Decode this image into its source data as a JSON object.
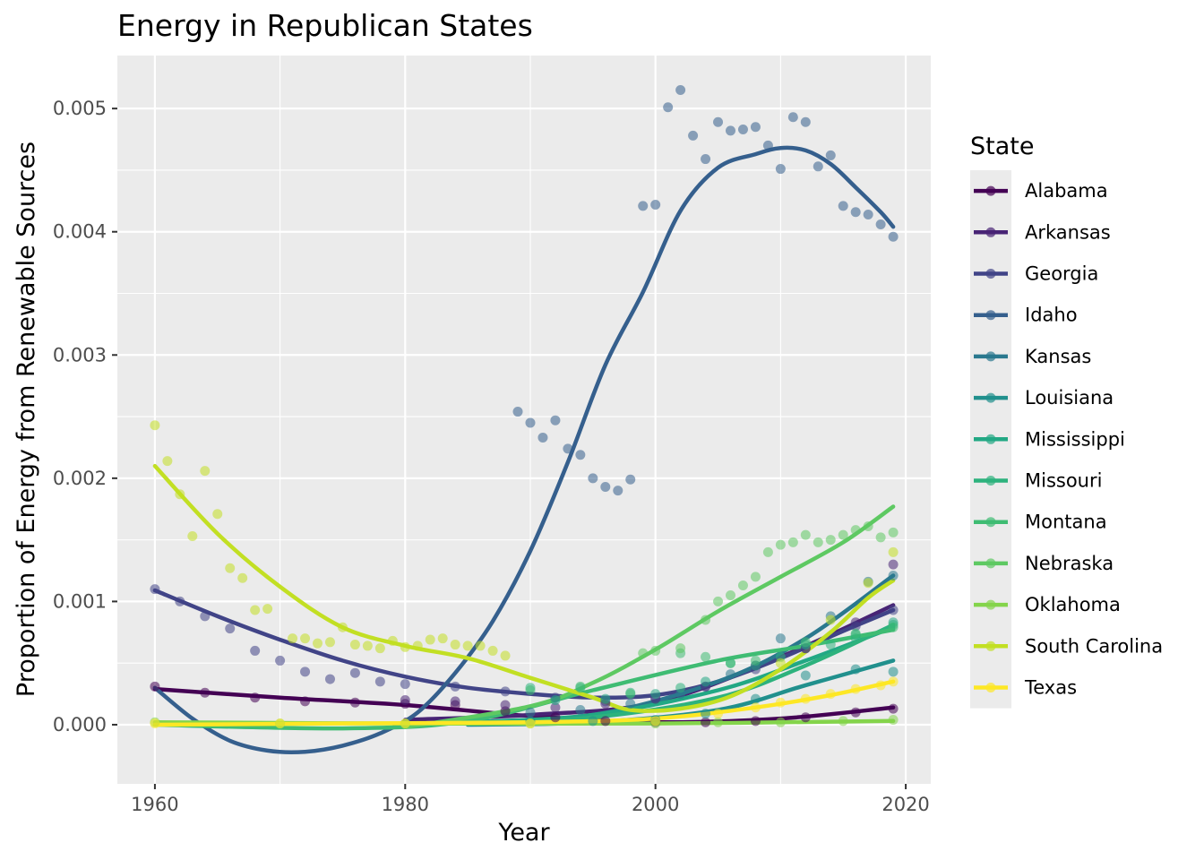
{
  "chart_data": {
    "type": "scatter",
    "title": "Energy in Republican States",
    "xlabel": "Year",
    "ylabel": "Proportion of Energy from Renewable Sources",
    "xlim": [
      1957,
      2022
    ],
    "ylim": [
      -0.00048,
      0.00543
    ],
    "xticks": [
      1960,
      1980,
      2000,
      2020
    ],
    "xtick_labels": [
      "1960",
      "1980",
      "2000",
      "2020"
    ],
    "yticks": [
      0,
      0.001,
      0.002,
      0.003,
      0.004,
      0.005
    ],
    "ytick_labels": [
      "0.000",
      "0.001",
      "0.002",
      "0.003",
      "0.004",
      "0.005"
    ],
    "grid": true,
    "legend": {
      "title": "State",
      "position": "right"
    },
    "overlay": "smoothed trend line per state",
    "series": [
      {
        "name": "Alabama",
        "color": "#440154",
        "x": [
          1960,
          1964,
          1968,
          1972,
          1976,
          1980,
          1984,
          1988,
          1992,
          1996,
          2000,
          2004,
          2008,
          2012,
          2016,
          2019
        ],
        "y": [
          0.00031,
          0.00026,
          0.00022,
          0.00019,
          0.00018,
          0.00017,
          0.00016,
          0.00011,
          6e-05,
          3e-05,
          2e-05,
          2e-05,
          3e-05,
          6e-05,
          0.0001,
          0.00013
        ],
        "trend_x": [
          1960,
          1970,
          1980,
          1990,
          2000,
          2010,
          2019
        ],
        "trend_y": [
          0.00029,
          0.00022,
          0.00016,
          7e-05,
          2e-05,
          5e-05,
          0.00014
        ]
      },
      {
        "name": "Arkansas",
        "color": "#482475",
        "x": [
          1980,
          1984,
          1988,
          1992,
          1996,
          2000,
          2004,
          2008,
          2012,
          2016,
          2019
        ],
        "y": [
          0.0002,
          0.00019,
          0.00016,
          0.00014,
          0.00017,
          0.00021,
          0.00031,
          0.00048,
          0.00062,
          0.00083,
          0.0013
        ],
        "trend_x": [
          1980,
          1990,
          2000,
          2010,
          2019
        ],
        "trend_y": [
          4e-05,
          8e-05,
          0.00018,
          0.00055,
          0.00097
        ]
      },
      {
        "name": "Georgia",
        "color": "#414487",
        "x": [
          1960,
          1962,
          1964,
          1966,
          1968,
          1970,
          1972,
          1974,
          1976,
          1978,
          1980,
          1984,
          1988,
          1992,
          1996,
          2000,
          2004,
          2008,
          2012,
          2016,
          2019
        ],
        "y": [
          0.0011,
          0.001,
          0.00088,
          0.00078,
          0.0006,
          0.00052,
          0.00043,
          0.00037,
          0.00042,
          0.00035,
          0.00033,
          0.00031,
          0.00027,
          0.00022,
          0.00019,
          0.00022,
          0.00031,
          0.00045,
          0.00062,
          0.0008,
          0.00093
        ],
        "trend_x": [
          1960,
          1965,
          1970,
          1975,
          1980,
          1985,
          1990,
          1995,
          2000,
          2005,
          2010,
          2015,
          2019
        ],
        "trend_y": [
          0.00109,
          0.00088,
          0.00069,
          0.00052,
          0.00039,
          0.0003,
          0.00025,
          0.00022,
          0.00024,
          0.00035,
          0.00054,
          0.00076,
          0.00093
        ]
      },
      {
        "name": "Idaho",
        "color": "#355f8d",
        "x": [
          1989,
          1990,
          1991,
          1992,
          1993,
          1994,
          1995,
          1996,
          1997,
          1998,
          1999,
          2000,
          2001,
          2002,
          2003,
          2004,
          2005,
          2006,
          2007,
          2008,
          2009,
          2010,
          2011,
          2012,
          2013,
          2014,
          2015,
          2016,
          2017,
          2018,
          2019
        ],
        "y": [
          0.00254,
          0.00245,
          0.00233,
          0.00247,
          0.00224,
          0.00219,
          0.002,
          0.00193,
          0.0019,
          0.00199,
          0.00421,
          0.00422,
          0.00501,
          0.00515,
          0.00478,
          0.00459,
          0.00489,
          0.00482,
          0.00483,
          0.00485,
          0.0047,
          0.00451,
          0.00493,
          0.00489,
          0.00453,
          0.00462,
          0.00421,
          0.00416,
          0.00414,
          0.00406,
          0.00396
        ],
        "trend_x": [
          1960,
          1963,
          1966,
          1969,
          1972,
          1975,
          1978,
          1981,
          1984,
          1987,
          1990,
          1993,
          1996,
          1999,
          2002,
          2005,
          2008,
          2010,
          2012,
          2014,
          2016,
          2018,
          2019
        ],
        "trend_y": [
          0.0003,
          5e-05,
          -0.00013,
          -0.00021,
          -0.00022,
          -0.00017,
          -7e-05,
          0.0001,
          0.00042,
          0.00084,
          0.00141,
          0.00213,
          0.00292,
          0.00351,
          0.00417,
          0.00452,
          0.00463,
          0.00468,
          0.00466,
          0.00455,
          0.00436,
          0.00416,
          0.00404
        ]
      },
      {
        "name": "Kansas",
        "color": "#2a788e",
        "x": [
          1990,
          1994,
          1998,
          2002,
          2006,
          2010,
          2014,
          2017,
          2019
        ],
        "y": [
          0.0001,
          0.00012,
          0.00017,
          0.00025,
          0.00041,
          0.0007,
          0.00088,
          0.00116,
          0.00121
        ],
        "trend_x": [
          1985,
          1995,
          2005,
          2012,
          2019
        ],
        "trend_y": [
          2e-05,
          8e-05,
          0.00035,
          0.0007,
          0.00121
        ]
      },
      {
        "name": "Louisiana",
        "color": "#21908d",
        "x": [
          1990,
          1995,
          2000,
          2004,
          2008,
          2012,
          2016,
          2019
        ],
        "y": [
          3e-05,
          3e-05,
          4e-05,
          9e-05,
          0.00021,
          0.0004,
          0.00045,
          0.00043
        ],
        "trend_x": [
          1985,
          1995,
          2005,
          2012,
          2019
        ],
        "trend_y": [
          0.0,
          2e-05,
          0.00012,
          0.00032,
          0.00052
        ]
      },
      {
        "name": "Mississippi",
        "color": "#22a884",
        "x": [
          1992,
          1996,
          2000,
          2004,
          2008,
          2012,
          2016,
          2019
        ],
        "y": [
          0.0002,
          0.00021,
          0.00025,
          0.00035,
          0.00048,
          0.00065,
          0.00073,
          0.00083
        ],
        "trend_x": [
          1985,
          1995,
          2005,
          2012,
          2019
        ],
        "trend_y": [
          2e-05,
          8e-05,
          0.00028,
          0.00052,
          0.00079
        ]
      },
      {
        "name": "Missouri",
        "color": "#2db27d",
        "x": [
          1990,
          1994,
          1998,
          2002,
          2006,
          2010,
          2014,
          2016,
          2019
        ],
        "y": [
          0.0003,
          0.0003,
          0.00026,
          0.0003,
          0.0005,
          0.00055,
          0.00065,
          0.0007,
          0.00081
        ],
        "trend_x": [
          1985,
          1995,
          2005,
          2012,
          2019
        ],
        "trend_y": [
          1e-05,
          6e-05,
          0.00022,
          0.00048,
          0.00081
        ]
      },
      {
        "name": "Montana",
        "color": "#3fbc73",
        "x": [
          1990,
          1994,
          1998,
          2002,
          2004,
          2006,
          2008,
          2012,
          2016,
          2019
        ],
        "y": [
          0.00028,
          0.00031,
          0.00025,
          0.00058,
          0.00055,
          0.0005,
          0.00052,
          0.00067,
          0.00074,
          0.00079
        ],
        "trend_x": [
          1960,
          1975,
          1985,
          1995,
          2005,
          2012,
          2019
        ],
        "trend_y": [
          0.0,
          -3e-05,
          3e-05,
          0.00028,
          0.00052,
          0.00064,
          0.00077
        ]
      },
      {
        "name": "Nebraska",
        "color": "#5ec962",
        "x": [
          1999,
          2000,
          2002,
          2004,
          2005,
          2006,
          2007,
          2008,
          2009,
          2010,
          2011,
          2012,
          2013,
          2014,
          2015,
          2016,
          2017,
          2018,
          2019
        ],
        "y": [
          0.00058,
          0.0006,
          0.00062,
          0.00085,
          0.001,
          0.00105,
          0.00113,
          0.0012,
          0.0014,
          0.00146,
          0.00148,
          0.00154,
          0.00148,
          0.0015,
          0.00154,
          0.00158,
          0.00161,
          0.00152,
          0.00156
        ],
        "trend_x": [
          1980,
          1990,
          1995,
          2000,
          2005,
          2010,
          2015,
          2019
        ],
        "trend_y": [
          -2e-05,
          0.00015,
          0.00034,
          0.00061,
          0.00092,
          0.0012,
          0.00148,
          0.00177
        ]
      },
      {
        "name": "Oklahoma",
        "color": "#84d44b",
        "x": [
          1960,
          1970,
          1980,
          1990,
          2000,
          2005,
          2010,
          2015,
          2019
        ],
        "y": [
          2e-05,
          1e-05,
          1e-05,
          1e-05,
          1e-05,
          2e-05,
          2e-05,
          3e-05,
          4e-05
        ],
        "trend_x": [
          1960,
          1980,
          2000,
          2019
        ],
        "trend_y": [
          2e-05,
          1e-05,
          1e-05,
          3e-05
        ]
      },
      {
        "name": "South Carolina",
        "color": "#c2df23",
        "x": [
          1960,
          1961,
          1962,
          1963,
          1964,
          1965,
          1966,
          1967,
          1968,
          1969,
          1971,
          1972,
          1973,
          1974,
          1975,
          1976,
          1977,
          1978,
          1979,
          1980,
          1981,
          1982,
          1983,
          1984,
          1985,
          1986,
          1987,
          1988,
          2010,
          2014,
          2017,
          2019
        ],
        "y": [
          0.00243,
          0.00214,
          0.00187,
          0.00153,
          0.00206,
          0.00171,
          0.00127,
          0.00119,
          0.00093,
          0.00094,
          0.0007,
          0.0007,
          0.00066,
          0.00067,
          0.00079,
          0.00065,
          0.00064,
          0.00062,
          0.00068,
          0.00063,
          0.00064,
          0.00069,
          0.0007,
          0.00065,
          0.00064,
          0.00064,
          0.0006,
          0.00056,
          0.0005,
          0.00085,
          0.00115,
          0.0014
        ],
        "trend_x": [
          1960,
          1965,
          1970,
          1975,
          1980,
          1985,
          1990,
          1995,
          1998,
          2002,
          2006,
          2010,
          2014,
          2017,
          2019
        ],
        "trend_y": [
          0.0021,
          0.00155,
          0.00112,
          0.00079,
          0.00064,
          0.00054,
          0.00038,
          0.00022,
          0.00012,
          0.00013,
          0.00023,
          0.00045,
          0.00075,
          0.00103,
          0.00117
        ]
      },
      {
        "name": "Texas",
        "color": "#fde725",
        "x": [
          1960,
          1970,
          1980,
          1990,
          2000,
          2005,
          2008,
          2010,
          2012,
          2014,
          2016,
          2018,
          2019
        ],
        "y": [
          1e-05,
          1e-05,
          1e-05,
          1e-05,
          3e-05,
          9e-05,
          0.00014,
          0.00018,
          0.00021,
          0.00025,
          0.00029,
          0.00032,
          0.00035
        ],
        "trend_x": [
          1960,
          1975,
          1990,
          2000,
          2008,
          2014,
          2019
        ],
        "trend_y": [
          0.0,
          1e-05,
          2e-05,
          5e-05,
          0.00014,
          0.00024,
          0.00035
        ]
      }
    ]
  }
}
